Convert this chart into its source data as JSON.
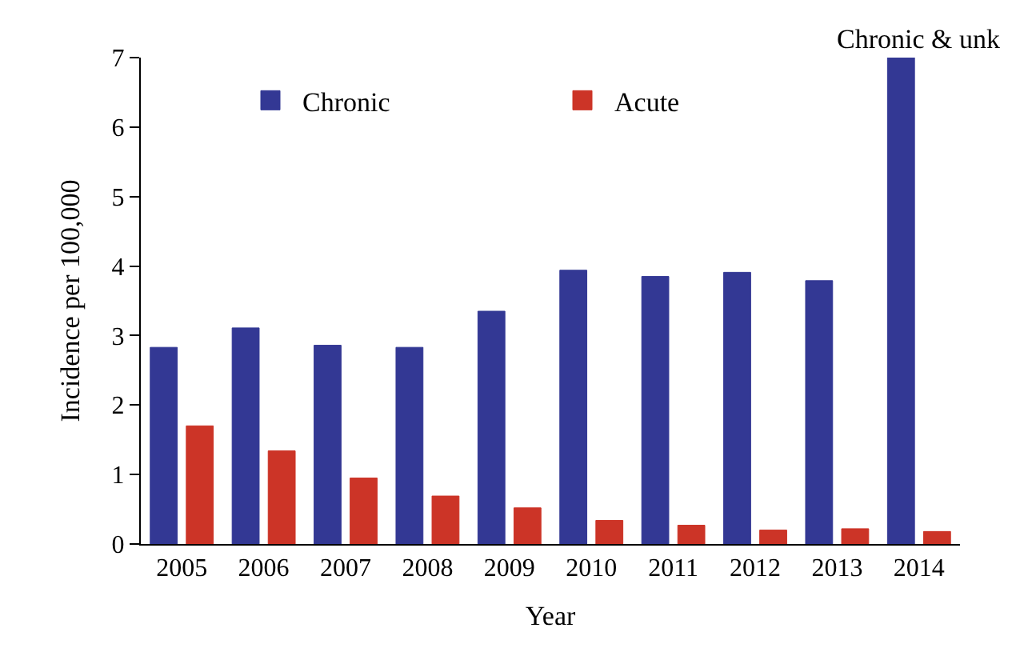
{
  "chart_data": {
    "type": "bar",
    "xlabel": "Year",
    "ylabel": "Incidence per 100,000",
    "categories": [
      "2005",
      "2006",
      "2007",
      "2008",
      "2009",
      "2010",
      "2011",
      "2012",
      "2013",
      "2014"
    ],
    "series": [
      {
        "name": "Chronic",
        "color": "#333894",
        "values": [
          2.83,
          3.11,
          2.86,
          2.83,
          3.35,
          3.94,
          3.85,
          3.91,
          3.79,
          7.0
        ]
      },
      {
        "name": "Acute",
        "color": "#cc3427",
        "values": [
          1.7,
          1.34,
          0.95,
          0.69,
          0.52,
          0.34,
          0.27,
          0.2,
          0.22,
          0.18
        ]
      }
    ],
    "ylim": [
      0,
      7
    ],
    "yticks": [
      0,
      1,
      2,
      3,
      4,
      5,
      6,
      7
    ],
    "legend": "top",
    "annotations": [
      {
        "text": "Chronic & unk",
        "x": "2014",
        "y": 7
      }
    ]
  }
}
